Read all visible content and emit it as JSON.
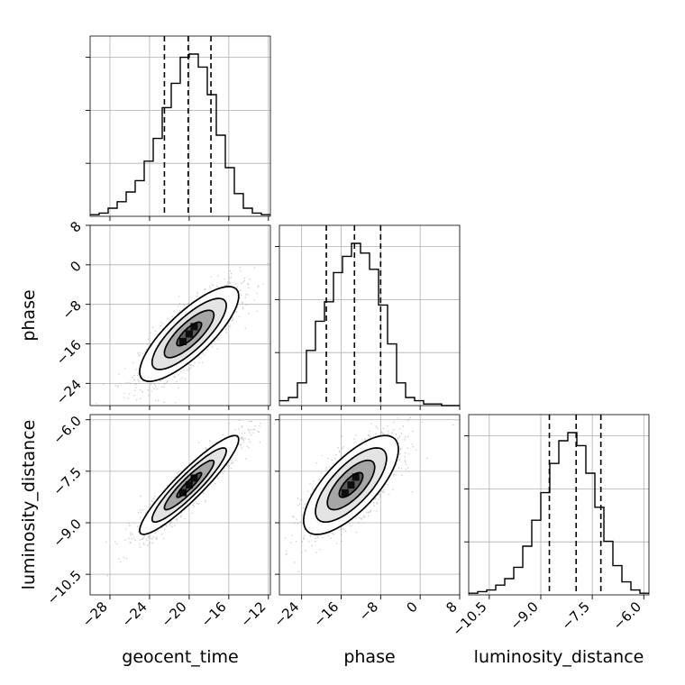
{
  "chart_data": {
    "type": "corner",
    "parameters": [
      "geocent_time",
      "phase",
      "luminosity_distance"
    ],
    "axis_labels": {
      "x": [
        "geocent_time",
        "phase",
        "luminosity_distance"
      ],
      "y": [
        "phase",
        "luminosity_distance"
      ]
    },
    "ticks": {
      "geocent_time": {
        "values": [
          -28,
          -24,
          -20,
          -16,
          -12
        ],
        "labels": [
          "−28",
          "−24",
          "−20",
          "−16",
          "−12"
        ],
        "lim": [
          -30.0,
          -11.8
        ]
      },
      "phase": {
        "values": [
          -24,
          -16,
          -8,
          0,
          8
        ],
        "labels": [
          "−24",
          "−16",
          "−8",
          "0",
          "8"
        ],
        "lim": [
          -28.5,
          8.0
        ]
      },
      "luminosity_distance": {
        "values": [
          -10.5,
          -9.0,
          -7.5,
          -6.0
        ],
        "labels": [
          "−10.5",
          "−9.0",
          "−7.5",
          "−6.0"
        ],
        "lim": [
          -11.1,
          -5.85
        ]
      }
    },
    "quantiles": {
      "geocent_time": [
        -22.5,
        -20.1,
        -17.8
      ],
      "phase": [
        -19.0,
        -13.3,
        -8.0
      ],
      "luminosity_distance": [
        -8.75,
        -7.97,
        -7.25
      ]
    },
    "histograms": {
      "geocent_time": {
        "edges_start": -30.0,
        "bin_width": 0.91,
        "counts": [
          1,
          2,
          5,
          9,
          15,
          22,
          34,
          48,
          67,
          82,
          98,
          100,
          92,
          75,
          50,
          30,
          14,
          5,
          2,
          1
        ]
      },
      "phase": {
        "edges_start": -28.5,
        "bin_width": 1.825,
        "counts": [
          3,
          5,
          14,
          34,
          52,
          64,
          82,
          92,
          100,
          94,
          84,
          62,
          38,
          14,
          5,
          3,
          1,
          1,
          0,
          0
        ]
      },
      "luminosity_distance": {
        "edges_start": -11.1,
        "bin_width": 0.2625,
        "counts": [
          1,
          2,
          3,
          6,
          10,
          17,
          30,
          46,
          63,
          81,
          95,
          100,
          92,
          75,
          54,
          33,
          18,
          8,
          3,
          1
        ]
      }
    },
    "pairs": [
      {
        "x": "geocent_time",
        "y": "phase",
        "mean": [
          -20.0,
          -14.0
        ],
        "sd": [
          2.5,
          4.8
        ],
        "corr": 0.8
      },
      {
        "x": "geocent_time",
        "y": "luminosity_distance",
        "mean": [
          -20.0,
          -7.9
        ],
        "sd": [
          2.5,
          0.72
        ],
        "corr": 0.92
      },
      {
        "x": "phase",
        "y": "luminosity_distance",
        "mean": [
          -14.0,
          -7.9
        ],
        "sd": [
          4.8,
          0.72
        ],
        "corr": 0.72
      }
    ],
    "contour_levels_sigma": [
      0.5,
      1.0,
      1.5,
      2.0
    ],
    "grid": true
  }
}
